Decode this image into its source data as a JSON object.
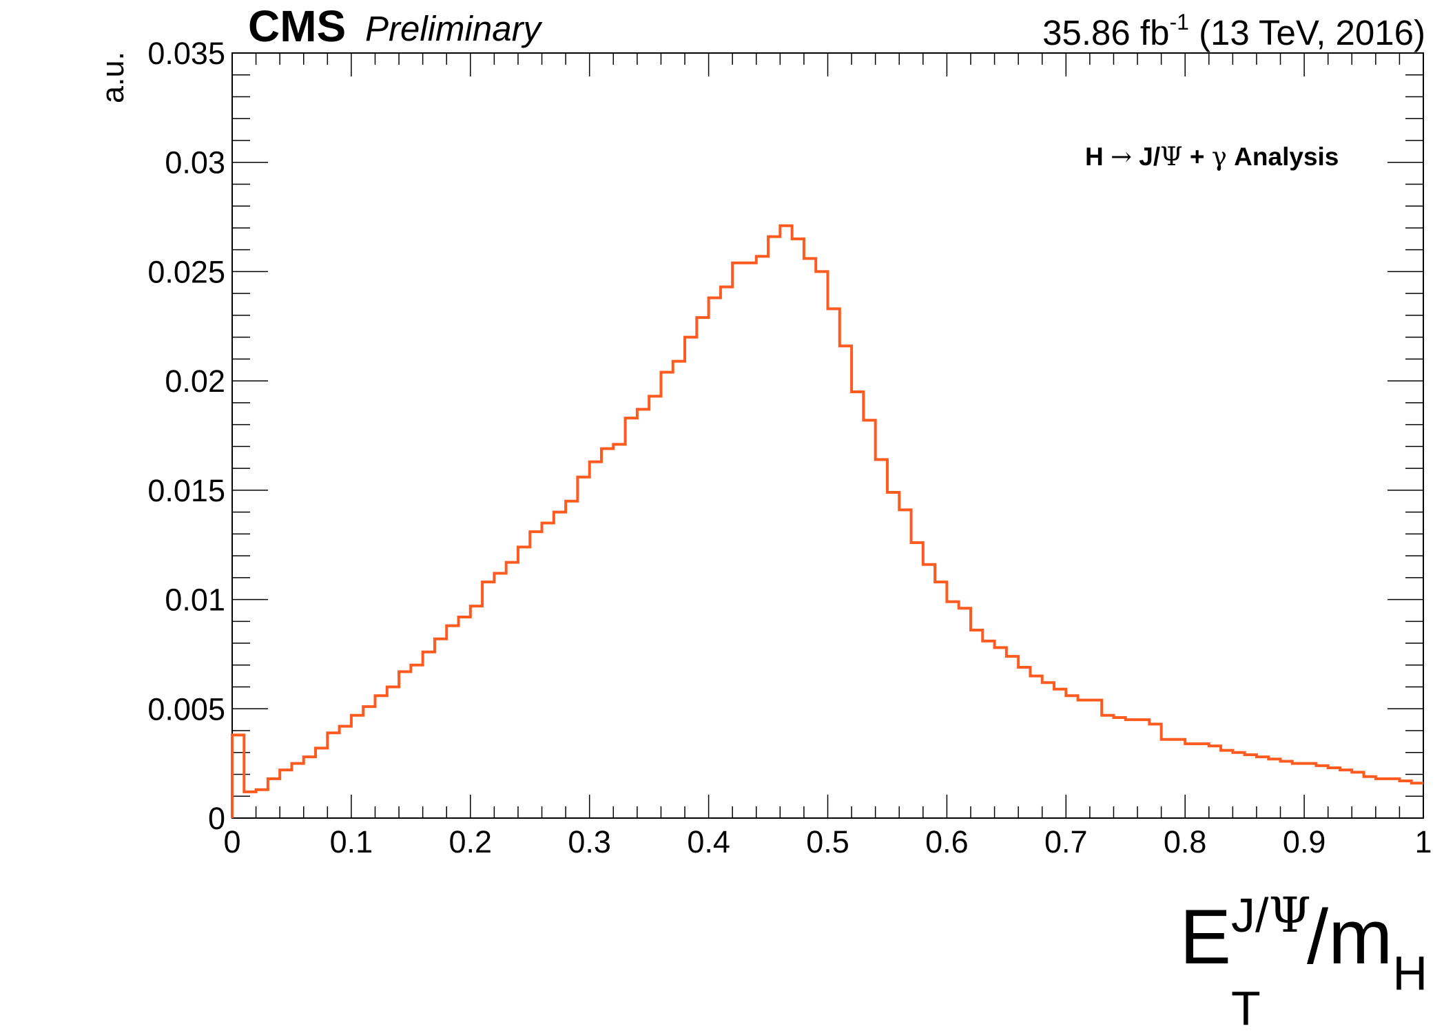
{
  "header": {
    "experiment": "CMS",
    "status": "Preliminary",
    "lumi_value": "35.86 fb",
    "lumi_exp": "-1",
    "energy": "(13 TeV, 2016)"
  },
  "annotation": {
    "prefix": "H ",
    "arrow": "→",
    "middle": " J/",
    "psi": "Ψ",
    "plus": " + ",
    "gamma": "γ",
    "suffix": " Analysis"
  },
  "xlabel_parts": {
    "main": "E",
    "sup_pre": "J/",
    "sup_psi": "Ψ",
    "sub": "T",
    "slash": "/m",
    "sub2": "H"
  },
  "chart_data": {
    "type": "histogram",
    "ylabel": "a.u.",
    "xlim": [
      0,
      1
    ],
    "ylim": [
      0,
      0.035
    ],
    "x_ticks": [
      "0",
      "0.1",
      "0.2",
      "0.3",
      "0.4",
      "0.5",
      "0.6",
      "0.7",
      "0.8",
      "0.9",
      "1"
    ],
    "y_ticks": [
      "0",
      "0.005",
      "0.01",
      "0.015",
      "0.02",
      "0.025",
      "0.03",
      "0.035"
    ],
    "bin_width": 0.01,
    "line_color": "#ff5a1f",
    "values": [
      0.0038,
      0.0012,
      0.0013,
      0.0018,
      0.0022,
      0.0025,
      0.0028,
      0.0032,
      0.0039,
      0.0042,
      0.0047,
      0.0051,
      0.0056,
      0.006,
      0.0067,
      0.007,
      0.0076,
      0.0082,
      0.0088,
      0.0092,
      0.0097,
      0.0108,
      0.0112,
      0.0117,
      0.0124,
      0.0131,
      0.0135,
      0.014,
      0.0145,
      0.0156,
      0.0163,
      0.0169,
      0.0171,
      0.0183,
      0.0187,
      0.0193,
      0.0204,
      0.0209,
      0.022,
      0.0229,
      0.0238,
      0.0243,
      0.0254,
      0.0254,
      0.0257,
      0.0266,
      0.0271,
      0.0265,
      0.0256,
      0.025,
      0.0233,
      0.0216,
      0.0195,
      0.0182,
      0.0164,
      0.0149,
      0.0141,
      0.0126,
      0.0116,
      0.0108,
      0.0099,
      0.0096,
      0.0086,
      0.0081,
      0.0078,
      0.0074,
      0.0069,
      0.0065,
      0.0062,
      0.0059,
      0.0056,
      0.0054,
      0.0054,
      0.0047,
      0.0046,
      0.0045,
      0.0045,
      0.0043,
      0.0036,
      0.0036,
      0.0034,
      0.0034,
      0.0033,
      0.0031,
      0.003,
      0.0029,
      0.0028,
      0.0027,
      0.0026,
      0.0025,
      0.0025,
      0.0024,
      0.0023,
      0.0022,
      0.0021,
      0.0019,
      0.0018,
      0.0018,
      0.0017,
      0.0016
    ]
  }
}
